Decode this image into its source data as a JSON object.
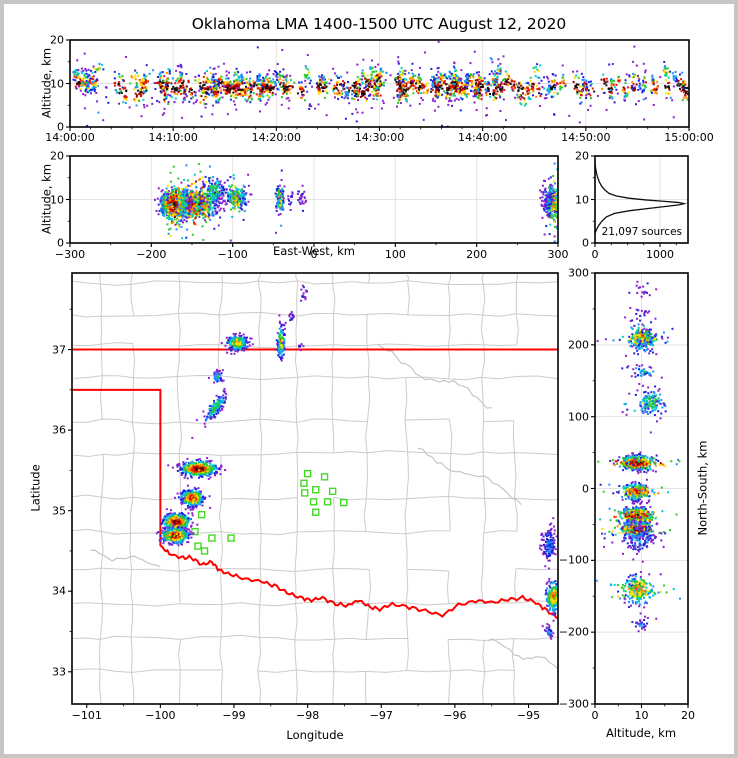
{
  "title": "Oklahoma LMA 1400-1500 UTC August 12, 2020",
  "colors": {
    "frame": "#c6c6c6",
    "axis": "#000000",
    "grid": "#e3e3e3",
    "county_line": "#cccccc",
    "river_gray": "#c2c2c2",
    "state_border_red": "#ff0000",
    "station_green": "#44d926",
    "histogram_line": "#111111",
    "density_colormap": [
      "#8822cc",
      "#2222dd",
      "#1e90ff",
      "#00cfcf",
      "#2ec72e",
      "#ffe000",
      "#ff8c00",
      "#e81500",
      "#8b0000",
      "#1a0d0d",
      "#a0a0a0",
      "#ffffff"
    ]
  },
  "panels": {
    "p1": {
      "ylabel": "Altitude, km",
      "yticks": [
        "0",
        "10",
        "20"
      ],
      "xticks": [
        "14:00:00",
        "14:10:00",
        "14:20:00",
        "14:30:00",
        "14:40:00",
        "14:50:00",
        "15:00:00"
      ]
    },
    "p2": {
      "ylabel": "Altitude, km",
      "xlabel": "East-West, km",
      "yticks": [
        "0",
        "10",
        "20"
      ],
      "xticks": [
        "−300",
        "−200",
        "−100",
        "0",
        "100",
        "200",
        "300"
      ]
    },
    "p3": {
      "note": "21,097 sources",
      "yticks": [
        "0",
        "10",
        "20"
      ],
      "xticks": [
        "0",
        "1000"
      ]
    },
    "p4": {
      "ylabel": "Latitude",
      "xlabel": "Longitude",
      "yticks": [
        "33",
        "34",
        "35",
        "36",
        "37"
      ],
      "xticks": [
        "−101",
        "−100",
        "−99",
        "−98",
        "−97",
        "−96",
        "−95"
      ]
    },
    "p5": {
      "ylabel": "North-South, km",
      "xlabel": "Altitude, km",
      "yticks": [
        "300",
        "200",
        "100",
        "0",
        "−100",
        "−200",
        "−300"
      ],
      "xticks": [
        "0",
        "10",
        "20"
      ]
    }
  },
  "chart_data": {
    "type": "scatter",
    "subtype": "multi-panel lightning-source density (XLMA style)",
    "source_count": 21097,
    "panels": {
      "time_height": {
        "x_domain_seconds": [
          0,
          3600
        ],
        "xtick_values": [
          0,
          600,
          1200,
          1800,
          2400,
          3000,
          3600
        ],
        "y_domain_km": [
          0,
          20
        ],
        "ytick_values": [
          0,
          10,
          20
        ],
        "grid": true
      },
      "ew_height": {
        "x_domain_km": [
          -300,
          300
        ],
        "xtick_values": [
          -300,
          -200,
          -100,
          0,
          100,
          200,
          300
        ],
        "y_domain_km": [
          0,
          20
        ],
        "ytick_values": [
          0,
          10,
          20
        ],
        "grid": true
      },
      "alt_histogram": {
        "x_domain_count": [
          0,
          1430
        ],
        "xtick_values": [
          0,
          1000
        ],
        "y_domain_km": [
          0,
          20
        ],
        "ytick_values": [
          0,
          10,
          20
        ],
        "grid": true,
        "curve_alt_count": [
          [
            2.3,
            0
          ],
          [
            3,
            20
          ],
          [
            4,
            55
          ],
          [
            5,
            105
          ],
          [
            6,
            175
          ],
          [
            6.8,
            300
          ],
          [
            7.4,
            520
          ],
          [
            7.9,
            800
          ],
          [
            8.4,
            1080
          ],
          [
            8.8,
            1300
          ],
          [
            9.05,
            1370
          ],
          [
            9.3,
            1290
          ],
          [
            9.6,
            1050
          ],
          [
            9.9,
            780
          ],
          [
            10.3,
            520
          ],
          [
            10.8,
            330
          ],
          [
            11.4,
            215
          ],
          [
            12.2,
            150
          ],
          [
            13,
            105
          ],
          [
            14,
            68
          ],
          [
            15,
            42
          ],
          [
            16,
            24
          ],
          [
            17,
            11
          ],
          [
            17.8,
            4
          ],
          [
            18.5,
            0
          ]
        ]
      },
      "map": {
        "lon_domain": [
          -101.2,
          -94.6
        ],
        "xtick_values": [
          -101,
          -100,
          -99,
          -98,
          -97,
          -96,
          -95
        ],
        "lat_domain": [
          32.6,
          37.95
        ],
        "ytick_values": [
          33,
          34,
          35,
          36,
          37
        ],
        "grid": false
      },
      "ns_height": {
        "x_domain_km": [
          0,
          20
        ],
        "xtick_values": [
          0,
          10,
          20
        ],
        "y_domain_km": [
          -300,
          300
        ],
        "ytick_values": [
          300,
          200,
          100,
          0,
          -100,
          -200,
          -300
        ],
        "grid": true
      }
    },
    "network_center": {
      "lon": -97.9,
      "lat": 35.2,
      "km_per_deg_lon": 91,
      "km_per_deg_lat": 111
    },
    "clusters": [
      {
        "id": "A_nw_kansas_line",
        "lon": -98.95,
        "lat": 37.08,
        "slon": 0.07,
        "slat": 0.045,
        "rho": 0,
        "alt": 10.3,
        "salt": 1.1,
        "n": 260,
        "f": 0.72
      },
      {
        "id": "A2_streak_on_37",
        "lon": -98.36,
        "lat": 37.1,
        "slon": 0.025,
        "slat": 0.1,
        "rho": 0,
        "alt": 10.0,
        "salt": 1.3,
        "n": 120,
        "f": 0.7
      },
      {
        "id": "speck_north_1",
        "lon": -98.05,
        "lat": 37.72,
        "slon": 0.02,
        "slat": 0.05,
        "rho": 0,
        "alt": 10.0,
        "salt": 1.0,
        "n": 16,
        "f": 0.25
      },
      {
        "id": "speck_north_2",
        "lon": -98.22,
        "lat": 37.4,
        "slon": 0.02,
        "slat": 0.03,
        "rho": 0,
        "alt": 10.0,
        "salt": 1.0,
        "n": 12,
        "f": 0.3
      },
      {
        "id": "speck_on_border",
        "lon": -98.1,
        "lat": 37.04,
        "slon": 0.015,
        "slat": 0.02,
        "rho": 0,
        "alt": 10.0,
        "salt": 0.8,
        "n": 8,
        "f": 0.28
      },
      {
        "id": "C_small_blue",
        "lon": -99.22,
        "lat": 36.66,
        "slon": 0.035,
        "slat": 0.04,
        "rho": 0,
        "alt": 10.5,
        "salt": 1.1,
        "n": 45,
        "f": 0.42
      },
      {
        "id": "D_diagonal_streak",
        "lon": -99.25,
        "lat": 36.28,
        "slon": 0.075,
        "slat": 0.09,
        "rho": 0.8,
        "alt": 12.0,
        "salt": 1.4,
        "n": 150,
        "f": 0.55
      },
      {
        "id": "E_storm_ew_elongated",
        "lon": -99.48,
        "lat": 35.52,
        "slon": 0.115,
        "slat": 0.045,
        "rho": 0,
        "alt": 9.0,
        "salt": 1.5,
        "n": 500,
        "f": 1.0
      },
      {
        "id": "F_storm",
        "lon": -99.57,
        "lat": 35.16,
        "slon": 0.075,
        "slat": 0.05,
        "rho": 0,
        "alt": 9.0,
        "salt": 1.3,
        "n": 380,
        "f": 0.9
      },
      {
        "id": "G_storm_white_core",
        "lon": -99.78,
        "lat": 34.86,
        "slon": 0.085,
        "slat": 0.05,
        "rho": 0,
        "alt": 9.0,
        "salt": 1.4,
        "n": 480,
        "f": 1.0
      },
      {
        "id": "H_storm_white_core",
        "lon": -99.8,
        "lat": 34.69,
        "slon": 0.085,
        "slat": 0.045,
        "rho": 0,
        "alt": 9.0,
        "salt": 1.3,
        "n": 450,
        "f": 1.0
      },
      {
        "id": "I_east_edge_sparse",
        "lon": -94.72,
        "lat": 34.58,
        "slon": 0.05,
        "slat": 0.11,
        "rho": 0,
        "alt": 9.5,
        "salt": 1.6,
        "n": 130,
        "f": 0.33
      },
      {
        "id": "J_east_edge_storm",
        "lon": -94.66,
        "lat": 33.93,
        "slon": 0.05,
        "slat": 0.09,
        "rho": 0,
        "alt": 9.3,
        "salt": 1.5,
        "n": 260,
        "f": 0.78
      },
      {
        "id": "K_east_edge_small",
        "lon": -94.72,
        "lat": 33.49,
        "slon": 0.03,
        "slat": 0.04,
        "rho": 0,
        "alt": 10.0,
        "salt": 0.8,
        "n": 28,
        "f": 0.3
      }
    ],
    "time_background": {
      "n": 220,
      "alt_mean": 9.0,
      "alt_sigma": 3.2
    },
    "stations_lonlat": [
      [
        -98.0,
        35.46
      ],
      [
        -97.77,
        35.42
      ],
      [
        -98.05,
        35.34
      ],
      [
        -97.89,
        35.26
      ],
      [
        -98.04,
        35.22
      ],
      [
        -97.66,
        35.24
      ],
      [
        -97.92,
        35.11
      ],
      [
        -97.73,
        35.11
      ],
      [
        -97.51,
        35.1
      ],
      [
        -97.89,
        34.98
      ],
      [
        -99.44,
        34.95
      ],
      [
        -99.53,
        34.74
      ],
      [
        -99.3,
        34.66
      ],
      [
        -99.49,
        34.56
      ],
      [
        -99.4,
        34.5
      ],
      [
        -99.04,
        34.66
      ]
    ],
    "oklahoma_border": {
      "north_lat": 37.0,
      "panhandle_south_lat": 36.5,
      "panhandle_west_lon": -100.0,
      "red_river_lonlat": [
        [
          -100.0,
          34.56
        ],
        [
          -99.88,
          34.47
        ],
        [
          -99.72,
          34.42
        ],
        [
          -99.58,
          34.42
        ],
        [
          -99.44,
          34.33
        ],
        [
          -99.3,
          34.36
        ],
        [
          -99.2,
          34.26
        ],
        [
          -99.05,
          34.21
        ],
        [
          -98.85,
          34.15
        ],
        [
          -98.62,
          34.12
        ],
        [
          -98.45,
          34.07
        ],
        [
          -98.28,
          33.98
        ],
        [
          -98.1,
          33.92
        ],
        [
          -97.95,
          33.89
        ],
        [
          -97.8,
          33.92
        ],
        [
          -97.62,
          33.84
        ],
        [
          -97.45,
          33.82
        ],
        [
          -97.32,
          33.89
        ],
        [
          -97.18,
          33.82
        ],
        [
          -97.02,
          33.77
        ],
        [
          -96.85,
          33.84
        ],
        [
          -96.62,
          33.8
        ],
        [
          -96.4,
          33.76
        ],
        [
          -96.17,
          33.7
        ],
        [
          -95.95,
          33.83
        ],
        [
          -95.72,
          33.88
        ],
        [
          -95.5,
          33.86
        ],
        [
          -95.28,
          33.89
        ],
        [
          -95.08,
          33.92
        ],
        [
          -94.9,
          33.86
        ],
        [
          -94.75,
          33.76
        ],
        [
          -94.6,
          33.66
        ]
      ]
    }
  }
}
